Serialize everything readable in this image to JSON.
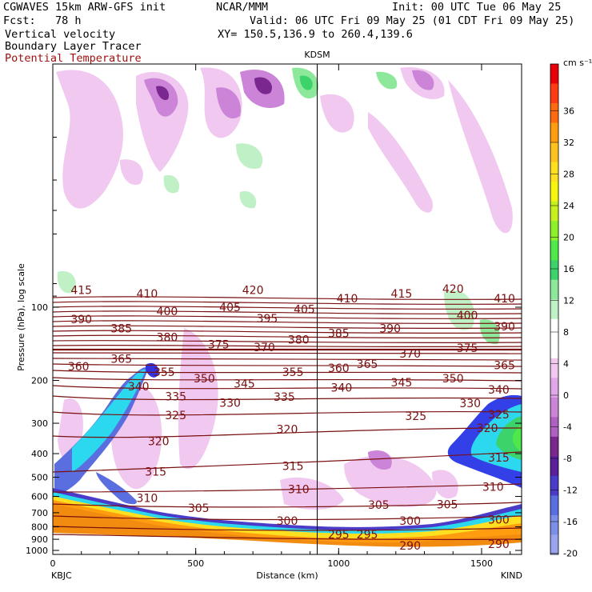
{
  "header": {
    "model": "CGWAVES 15km ARW-GFS init",
    "org": "NCAR/MMM",
    "init": "Init: 00 UTC Tue 06 May 25",
    "fcst": "Fcst:   78 h",
    "valid": "Valid: 06 UTC Fri 09 May 25 (01 CDT Fri 09 May 25)",
    "field1": "Vertical velocity",
    "xy": "XY= 150.5,136.9 to 260.4,139.6",
    "field2": "Boundary Layer Tracer",
    "field3": "Potential Temperature"
  },
  "colors": {
    "contour": "#7a1010",
    "text_red": "#a01010"
  },
  "chart_data": {
    "type": "cross-section",
    "xlabel": "Distance (km)",
    "ylabel": "Pressure (hPa), log scale",
    "xlim": [
      0,
      1640
    ],
    "x_ticks": [
      "0",
      "500",
      "1000",
      "1500"
    ],
    "y_ticks": [
      "100",
      "200",
      "300",
      "400",
      "500",
      "600",
      "700",
      "800",
      "900",
      "1000"
    ],
    "left_station": "KBJC",
    "right_station": "KIND",
    "mid_station": "KDSM",
    "mid_station_x_km": 925,
    "colorbar": {
      "unit": "cm s⁻¹",
      "levels": [
        "36",
        "32",
        "28",
        "24",
        "20",
        "16",
        "12",
        "8",
        "4",
        "0",
        "-4",
        "-8",
        "-12",
        "-16",
        "-20"
      ],
      "colors": [
        "#e8000a",
        "#ff3a14",
        "#ff6a10",
        "#ff9c10",
        "#ffc21e",
        "#ffe020",
        "#f5f510",
        "#c8f020",
        "#8ef02a",
        "#4ee84a",
        "#3cd46a",
        "#8ee89c",
        "#bff0c6",
        "#ffffff",
        "#ffffff",
        "#f0c8f0",
        "#e0a8e8",
        "#cc84d8",
        "#b060c0",
        "#7a2890",
        "#5a1f9a",
        "#4a3cc8",
        "#5a6ee0",
        "#7c8ee8",
        "#9aa4ee"
      ]
    },
    "theta_labels": [
      {
        "v": "415",
        "x": 100,
        "p": 85
      },
      {
        "v": "410",
        "x": 330,
        "p": 88
      },
      {
        "v": "420",
        "x": 700,
        "p": 85
      },
      {
        "v": "410",
        "x": 1030,
        "p": 92
      },
      {
        "v": "415",
        "x": 1220,
        "p": 88
      },
      {
        "v": "420",
        "x": 1400,
        "p": 84
      },
      {
        "v": "410",
        "x": 1580,
        "p": 92
      },
      {
        "v": "390",
        "x": 100,
        "p": 112
      },
      {
        "v": "400",
        "x": 400,
        "p": 104
      },
      {
        "v": "405",
        "x": 620,
        "p": 100
      },
      {
        "v": "395",
        "x": 750,
        "p": 111
      },
      {
        "v": "405",
        "x": 880,
        "p": 102
      },
      {
        "v": "385",
        "x": 1000,
        "p": 128
      },
      {
        "v": "390",
        "x": 1180,
        "p": 122
      },
      {
        "v": "400",
        "x": 1450,
        "p": 108
      },
      {
        "v": "390",
        "x": 1580,
        "p": 120
      },
      {
        "v": "385",
        "x": 240,
        "p": 122
      },
      {
        "v": "380",
        "x": 400,
        "p": 133
      },
      {
        "v": "375",
        "x": 580,
        "p": 142
      },
      {
        "v": "370",
        "x": 740,
        "p": 146
      },
      {
        "v": "380",
        "x": 860,
        "p": 136
      },
      {
        "v": "370",
        "x": 1250,
        "p": 155
      },
      {
        "v": "375",
        "x": 1450,
        "p": 147
      },
      {
        "v": "360",
        "x": 90,
        "p": 175
      },
      {
        "v": "365",
        "x": 240,
        "p": 163
      },
      {
        "v": "355",
        "x": 390,
        "p": 185
      },
      {
        "v": "350",
        "x": 530,
        "p": 196
      },
      {
        "v": "345",
        "x": 670,
        "p": 206
      },
      {
        "v": "355",
        "x": 840,
        "p": 185
      },
      {
        "v": "360",
        "x": 1000,
        "p": 178
      },
      {
        "v": "365",
        "x": 1100,
        "p": 171
      },
      {
        "v": "365",
        "x": 1580,
        "p": 173
      },
      {
        "v": "340",
        "x": 300,
        "p": 212
      },
      {
        "v": "335",
        "x": 430,
        "p": 233
      },
      {
        "v": "330",
        "x": 620,
        "p": 247
      },
      {
        "v": "335",
        "x": 810,
        "p": 234
      },
      {
        "v": "340",
        "x": 1010,
        "p": 214
      },
      {
        "v": "345",
        "x": 1220,
        "p": 204
      },
      {
        "v": "350",
        "x": 1400,
        "p": 196
      },
      {
        "v": "340",
        "x": 1560,
        "p": 218
      },
      {
        "v": "325",
        "x": 430,
        "p": 278
      },
      {
        "v": "320",
        "x": 370,
        "p": 355
      },
      {
        "v": "320",
        "x": 820,
        "p": 318
      },
      {
        "v": "325",
        "x": 1270,
        "p": 280
      },
      {
        "v": "330",
        "x": 1460,
        "p": 248
      },
      {
        "v": "325",
        "x": 1560,
        "p": 276
      },
      {
        "v": "320",
        "x": 1520,
        "p": 314
      },
      {
        "v": "315",
        "x": 360,
        "p": 475
      },
      {
        "v": "315",
        "x": 840,
        "p": 450
      },
      {
        "v": "315",
        "x": 1560,
        "p": 416
      },
      {
        "v": "310",
        "x": 860,
        "p": 560
      },
      {
        "v": "310",
        "x": 1540,
        "p": 548
      },
      {
        "v": "310",
        "x": 330,
        "p": 610
      },
      {
        "v": "305",
        "x": 510,
        "p": 670
      },
      {
        "v": "305",
        "x": 1140,
        "p": 650
      },
      {
        "v": "305",
        "x": 1380,
        "p": 648
      },
      {
        "v": "300",
        "x": 820,
        "p": 757
      },
      {
        "v": "300",
        "x": 1250,
        "p": 755
      },
      {
        "v": "300",
        "x": 1560,
        "p": 748
      },
      {
        "v": "295",
        "x": 1000,
        "p": 860
      },
      {
        "v": "295",
        "x": 1100,
        "p": 860
      },
      {
        "v": "290",
        "x": 1250,
        "p": 955
      },
      {
        "v": "290",
        "x": 1560,
        "p": 940
      }
    ]
  }
}
